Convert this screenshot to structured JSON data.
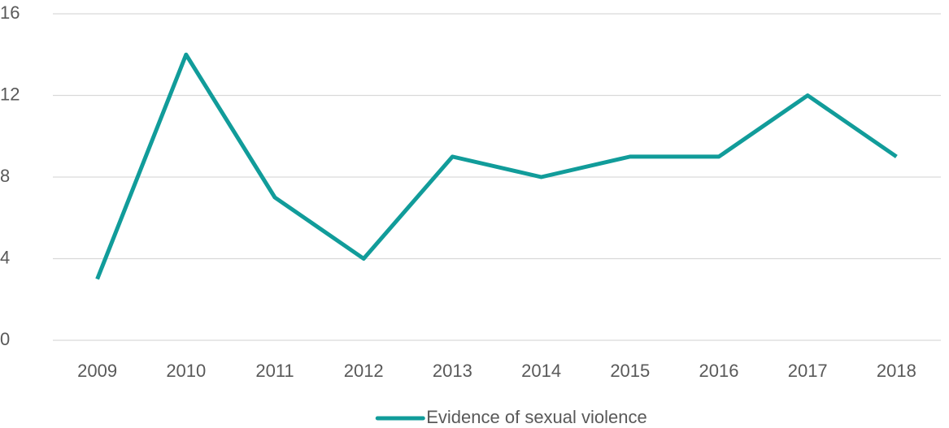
{
  "chart_data": {
    "type": "line",
    "categories": [
      "2009",
      "2010",
      "2011",
      "2012",
      "2013",
      "2014",
      "2015",
      "2016",
      "2017",
      "2018"
    ],
    "series": [
      {
        "name": "Evidence of sexual violence",
        "color": "#119c9a",
        "values": [
          3,
          14,
          7,
          4,
          9,
          8,
          9,
          9,
          12,
          9
        ]
      }
    ],
    "ylim": [
      0,
      16
    ],
    "yticks": [
      0,
      4,
      8,
      12,
      16
    ],
    "grid": true,
    "legend": "bottom"
  }
}
